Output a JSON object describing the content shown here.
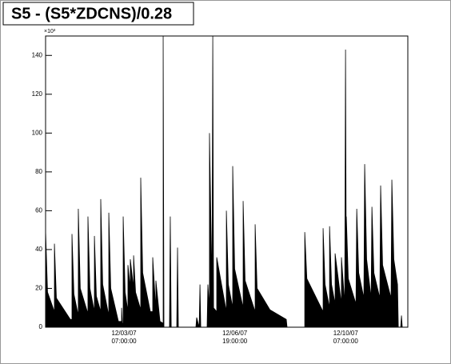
{
  "chart_data": {
    "type": "area",
    "title": "S5 - (S5*ZDCNS)/0.28",
    "y_exponent": "×10³",
    "color": "#000000",
    "x": [
      0,
      1.5,
      6.7,
      6.7,
      8.2,
      18.8,
      20,
      20,
      21.5,
      24.8,
      24.8,
      26.3,
      32.1,
      32.1,
      33.6,
      37,
      37,
      38.5,
      41.8,
      41.8,
      43.3,
      47.9,
      47.9,
      49.4,
      55.2,
      57.6,
      57.6,
      58.2,
      58.8,
      58.8,
      60.3,
      62.4,
      62.4,
      64.2,
      64.2,
      66.7,
      66.7,
      68.2,
      72.1,
      72.1,
      73.6,
      79.4,
      81.2,
      81.2,
      83.6,
      83.6,
      86.7,
      89.1,
      89.1,
      89.7,
      93.9,
      94.5,
      95.2,
      99.4,
      100,
      100.6,
      113.9,
      114.5,
      116.4,
      117,
      117.6,
      122.4,
      123,
      124.2,
      124.2,
      126.1,
      126.7,
      127.3,
      129.7,
      129.7,
      137,
      137,
      138.5,
      141.8,
      141.8,
      143.3,
      149.7,
      149.7,
      151.2,
      158.8,
      158.8,
      160.3,
      170,
      182.4,
      183,
      195.8,
      196.4,
      196.4,
      198,
      210.3,
      210.3,
      211.8,
      215.2,
      215.2,
      216.7,
      219.4,
      219.4,
      224.2,
      224.2,
      226.7,
      227.3,
      227.9,
      227.9,
      229.4,
      235.2,
      235.8,
      237.3,
      241.2,
      241.8,
      243.3,
      246.7,
      247.3,
      248.8,
      253.3,
      253.9,
      255.4,
      261.8,
      262.4,
      263.9,
      266.7,
      267.3,
      269.1,
      269.7,
      270.3,
      274.5
    ],
    "values": [
      50,
      18,
      8,
      43,
      15,
      4,
      4,
      48,
      17,
      6,
      61,
      20,
      7,
      57,
      20,
      8,
      47,
      16,
      8,
      66,
      22,
      6,
      59,
      20,
      3,
      3,
      10,
      2,
      2,
      57,
      18,
      8,
      32,
      20,
      35,
      20,
      37,
      18,
      9,
      77,
      28,
      8,
      8,
      36,
      8,
      24,
      3,
      2,
      150,
      0,
      0,
      57,
      0,
      0,
      41,
      0,
      0,
      5,
      0,
      22,
      0,
      0,
      22,
      10,
      100,
      20,
      150,
      10,
      8,
      36,
      8,
      60,
      22,
      10,
      83,
      30,
      10,
      65,
      24,
      8,
      53,
      20,
      9,
      4,
      0,
      0,
      0,
      49,
      25,
      8,
      51,
      22,
      10,
      52,
      22,
      12,
      38,
      12,
      36,
      12,
      143,
      20,
      57,
      25,
      12,
      61,
      28,
      15,
      84,
      35,
      15,
      62,
      28,
      15,
      73,
      32,
      15,
      76,
      35,
      22,
      0,
      0,
      6,
      0,
      0
    ],
    "xlim": [
      0,
      274.5
    ],
    "ylim": [
      0,
      150
    ],
    "xticks": [
      {
        "value": 59.4,
        "label": "12/03/07 07:00:00"
      },
      {
        "value": 143.4,
        "label": "12/06/07 19:00:00"
      },
      {
        "value": 227.4,
        "label": "12/10/07 07:00:00"
      }
    ],
    "yticks": [
      0,
      20,
      40,
      60,
      80,
      100,
      120,
      140
    ]
  }
}
